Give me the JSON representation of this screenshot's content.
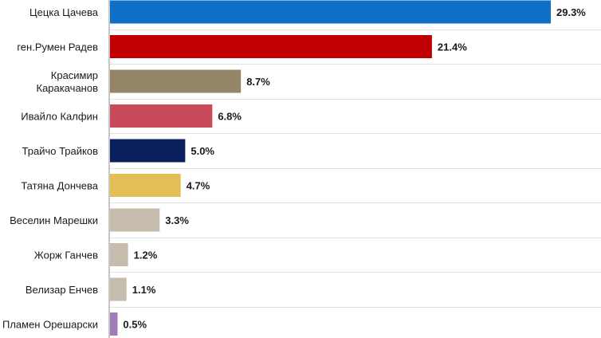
{
  "chart_data": {
    "type": "bar",
    "orientation": "horizontal",
    "title": "",
    "xlabel": "",
    "ylabel": "",
    "xlim": [
      0,
      30
    ],
    "grid": "horizontal",
    "legend": "none",
    "value_suffix": "%",
    "categories": [
      [
        "Цецка Цачева"
      ],
      [
        "ген.Румен Радев"
      ],
      [
        "Красимир",
        "Каракачанов"
      ],
      [
        "Ивайло Калфин"
      ],
      [
        "Трайчо Трайков"
      ],
      [
        "Татяна Дончева"
      ],
      [
        "Веселин Марешки"
      ],
      [
        "Жорж Ганчев"
      ],
      [
        "Велизар Енчев"
      ],
      [
        "Пламен Орешарски"
      ]
    ],
    "values": [
      29.3,
      21.4,
      8.7,
      6.8,
      5.0,
      4.7,
      3.3,
      1.2,
      1.1,
      0.5
    ],
    "value_labels": [
      "29.3%",
      "21.4%",
      "8.7%",
      "6.8%",
      "5.0%",
      "4.7%",
      "3.3%",
      "1.2%",
      "1.1%",
      "0.5%"
    ],
    "colors": [
      "#0f6fc6",
      "#c00000",
      "#948468",
      "#c94a5a",
      "#0b1f5c",
      "#e1bf55",
      "#c5bcae",
      "#c5bcae",
      "#c5bcae",
      "#a27bb9"
    ]
  }
}
